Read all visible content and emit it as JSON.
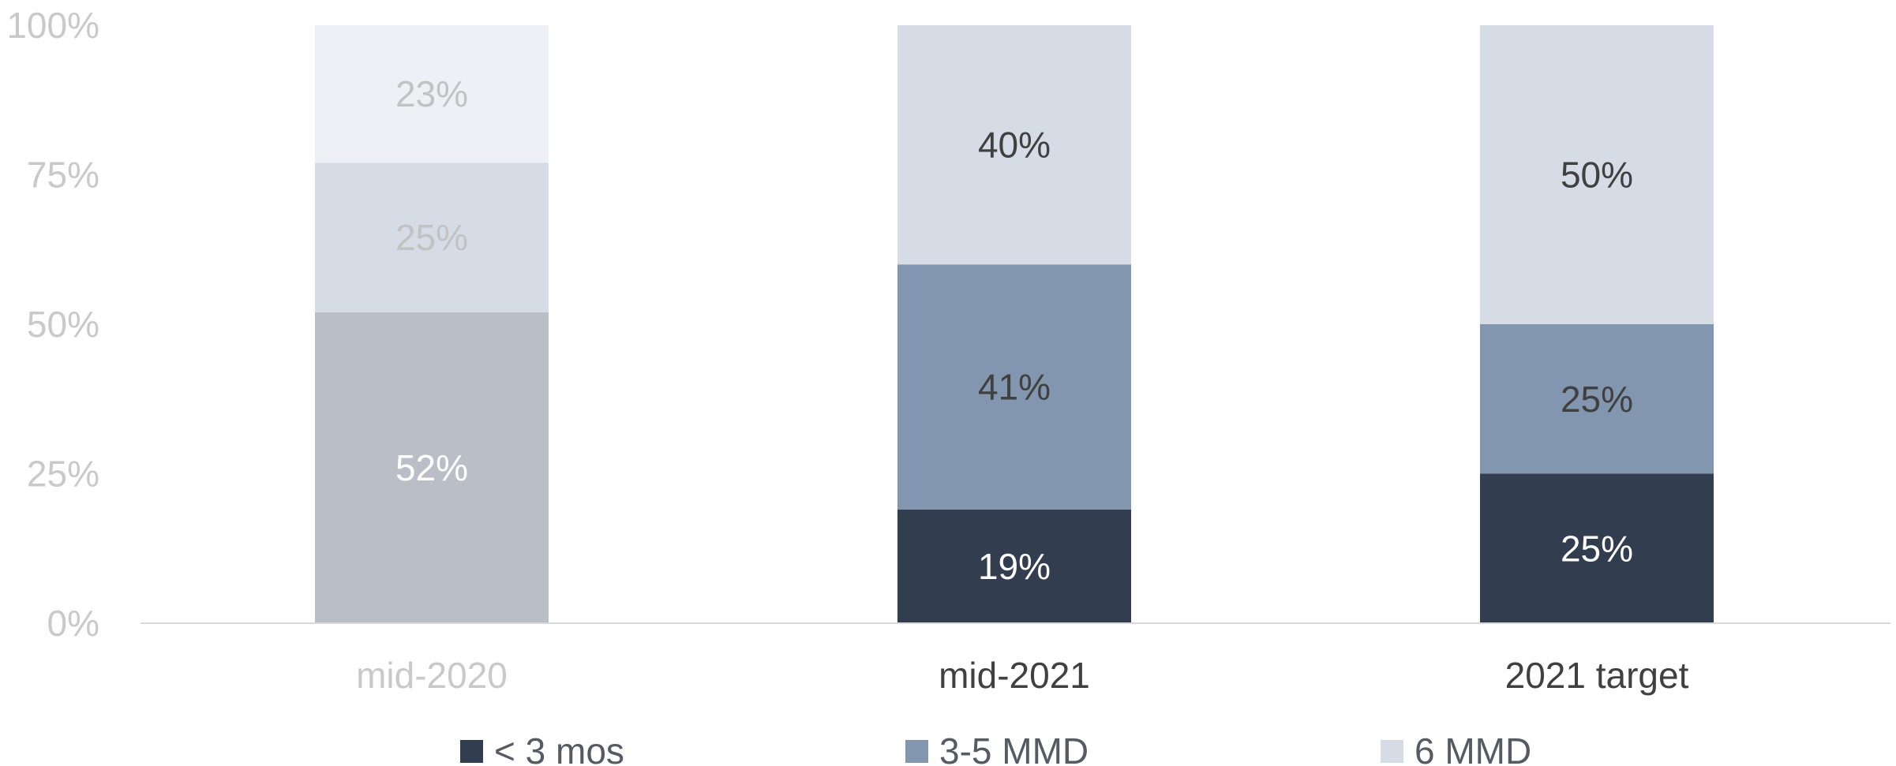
{
  "chart_data": {
    "type": "bar",
    "stacked": true,
    "categories": [
      "mid-2020",
      "mid-2021",
      "2021 target"
    ],
    "series": [
      {
        "name": "< 3 mos",
        "values": [
          0,
          19,
          25
        ],
        "color": "#323d4f"
      },
      {
        "name": "3-5 MMD",
        "values": [
          52,
          41,
          25
        ],
        "color": "#8396af"
      },
      {
        "name": "6 MMD",
        "values": [
          25,
          40,
          50
        ],
        "color": "#d6dce5"
      }
    ],
    "extra_segment_mid_2020": {
      "value": 23,
      "color": "#eef0f5"
    },
    "data_labels": [
      [
        "",
        "52%",
        "25%",
        "23%"
      ],
      [
        "19%",
        "41%",
        "40%",
        ""
      ],
      [
        "25%",
        "25%",
        "50%",
        ""
      ]
    ],
    "y_ticks": [
      "0%",
      "25%",
      "50%",
      "75%",
      "100%"
    ],
    "ylim": [
      0,
      100
    ],
    "title": "",
    "xlabel": "",
    "ylabel": "",
    "legend_position": "bottom",
    "grid": false,
    "colors": {
      "dark": "#323d4f",
      "mid": "#8396af",
      "light": "#d6dce5",
      "faded_grey": "#babec6",
      "faded_light": "#d6dce5",
      "faded_lightest": "#eef0f5",
      "axis_label_muted": "#c9c9c9",
      "axis_label": "#404040",
      "axis_line": "#d9d9d9"
    }
  }
}
